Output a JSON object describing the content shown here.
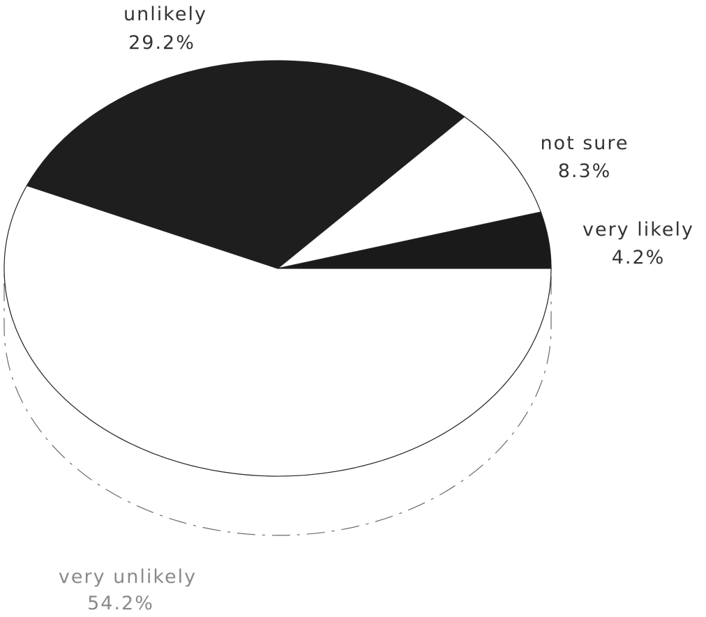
{
  "chart_data": {
    "type": "pie",
    "style": "3d",
    "title": "",
    "slices": [
      {
        "label": "very likely",
        "percent_label": "4.2%",
        "value": 4.2,
        "color": "#1a1a1a"
      },
      {
        "label": "not sure",
        "percent_label": "8.3%",
        "value": 8.3,
        "color": "#ffffff"
      },
      {
        "label": "unlikely",
        "percent_label": "29.2%",
        "value": 29.2,
        "color": "#1e1e1e"
      },
      {
        "label": "very unlikely",
        "percent_label": "54.2%",
        "value": 54.2,
        "color": "#ffffff"
      }
    ]
  }
}
